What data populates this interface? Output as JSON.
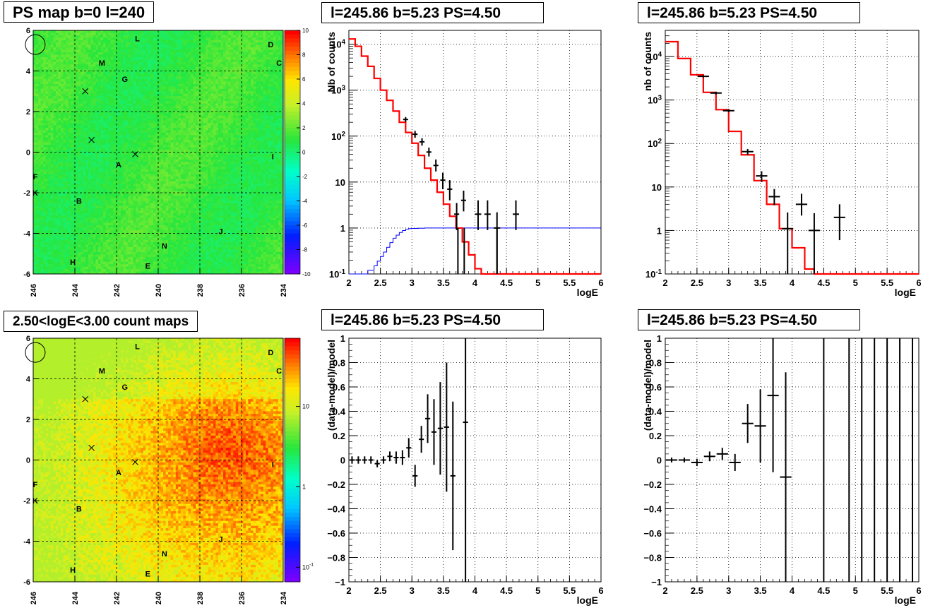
{
  "pads": {
    "map_ps": {
      "title": "PS map b=0 l=240"
    },
    "map_cnt": {
      "title": "2.50<logE<3.00 count maps"
    },
    "spec1": {
      "title": "l=245.86 b=5.23 PS=4.50"
    },
    "spec2": {
      "title": "l=245.86 b=5.23 PS=4.50"
    },
    "res1": {
      "title": "l=245.86 b=5.23 PS=4.50"
    },
    "res2": {
      "title": "l=245.86 b=5.23 PS=4.50"
    }
  },
  "colors": {
    "model": "#ff0000",
    "exposure": "#0000ff",
    "data": "#000000"
  },
  "chart_data": [
    {
      "id": "map_ps",
      "type": "heatmap",
      "title": "PS map b=0 l=240",
      "x_ticks": [
        "246",
        "244",
        "242",
        "240",
        "238",
        "236",
        "234"
      ],
      "y_ticks": [
        "6",
        "4",
        "2",
        "0",
        "-2",
        "-4",
        "-6"
      ],
      "xlim": [
        246,
        234
      ],
      "ylim": [
        -6,
        6
      ],
      "z_ticks": [
        "10",
        "8",
        "6",
        "4",
        "2",
        "0",
        "-2",
        "-4",
        "-6",
        "-8",
        "-10"
      ],
      "zlim": [
        -10,
        10
      ],
      "dominant_value": 0,
      "grid": true,
      "labels": [
        {
          "t": "L",
          "l": 241.0,
          "b": 5.6
        },
        {
          "t": "D",
          "l": 234.6,
          "b": 5.3
        },
        {
          "t": "C",
          "l": 234.2,
          "b": 4.4
        },
        {
          "t": "M",
          "l": 242.7,
          "b": 4.4
        },
        {
          "t": "G",
          "l": 241.6,
          "b": 3.6
        },
        {
          "t": "I",
          "l": 234.5,
          "b": -0.2
        },
        {
          "t": "A",
          "l": 241.9,
          "b": -0.6
        },
        {
          "t": "F",
          "l": 245.9,
          "b": -1.2
        },
        {
          "t": "K",
          "l": 245.9,
          "b": -2.0
        },
        {
          "t": "B",
          "l": 243.8,
          "b": -2.4
        },
        {
          "t": "J",
          "l": 237.0,
          "b": -3.9
        },
        {
          "t": "N",
          "l": 239.7,
          "b": -4.6
        },
        {
          "t": "H",
          "l": 244.1,
          "b": -5.4
        },
        {
          "t": "E",
          "l": 240.5,
          "b": -5.6
        }
      ],
      "crosses": [
        {
          "l": 243.5,
          "b": 3.0
        },
        {
          "l": 243.2,
          "b": 0.6
        },
        {
          "l": 241.1,
          "b": -0.1
        }
      ],
      "circle": {
        "l": 245.9,
        "b": 5.3
      }
    },
    {
      "id": "map_cnt",
      "type": "heatmap",
      "title": "2.50<logE<3.00 count maps",
      "x_ticks": [
        "246",
        "244",
        "242",
        "240",
        "238",
        "236",
        "234"
      ],
      "y_ticks": [
        "6",
        "4",
        "2",
        "0",
        "-2",
        "-4",
        "-6"
      ],
      "xlim": [
        246,
        234
      ],
      "ylim": [
        -6,
        6
      ],
      "z_ticks": [
        "10",
        "1",
        "10^{-1}"
      ],
      "zscale": "log",
      "grid": true,
      "labels": [
        {
          "t": "L",
          "l": 241.0,
          "b": 5.6
        },
        {
          "t": "D",
          "l": 234.6,
          "b": 5.3
        },
        {
          "t": "C",
          "l": 234.2,
          "b": 4.4
        },
        {
          "t": "M",
          "l": 242.7,
          "b": 4.4
        },
        {
          "t": "G",
          "l": 241.6,
          "b": 3.6
        },
        {
          "t": "I",
          "l": 234.5,
          "b": -0.2
        },
        {
          "t": "A",
          "l": 241.9,
          "b": -0.6
        },
        {
          "t": "F",
          "l": 245.9,
          "b": -1.2
        },
        {
          "t": "K",
          "l": 245.9,
          "b": -2.0
        },
        {
          "t": "B",
          "l": 243.8,
          "b": -2.4
        },
        {
          "t": "J",
          "l": 237.0,
          "b": -3.9
        },
        {
          "t": "N",
          "l": 239.7,
          "b": -4.6
        },
        {
          "t": "H",
          "l": 244.1,
          "b": -5.4
        },
        {
          "t": "E",
          "l": 240.5,
          "b": -5.6
        }
      ],
      "crosses": [
        {
          "l": 243.5,
          "b": 3.0
        },
        {
          "l": 243.2,
          "b": 0.6
        },
        {
          "l": 241.1,
          "b": -0.1
        }
      ],
      "circle": {
        "l": 245.9,
        "b": 5.3
      }
    },
    {
      "id": "spec1",
      "type": "line",
      "title": "l=245.86 b=5.23 PS=4.50",
      "xlabel": "logE",
      "ylabel": "Nb of counts",
      "xlim": [
        2,
        6
      ],
      "ylim": [
        0.1,
        20000
      ],
      "yscale": "log",
      "x_ticks": [
        "2",
        "2.5",
        "3",
        "3.5",
        "4",
        "4.5",
        "5",
        "5.5",
        "6"
      ],
      "y_ticks": [
        "10^{-1}",
        "1",
        "10",
        "10^{2}",
        "10^{3}",
        "10^{4}"
      ],
      "grid": true,
      "model_bins": {
        "edges": [
          2,
          2.1,
          2.2,
          2.3,
          2.4,
          2.5,
          2.6,
          2.7,
          2.8,
          2.9,
          3.0,
          3.1,
          3.2,
          3.3,
          3.4,
          3.5,
          3.6,
          3.7,
          3.8,
          3.9,
          4.0,
          4.1,
          4.2,
          6.0
        ],
        "values": [
          13000,
          9000,
          5500,
          3300,
          1800,
          1000,
          600,
          350,
          200,
          120,
          70,
          38,
          20,
          11,
          6,
          3.3,
          1.8,
          1.0,
          0.5,
          0.26,
          0.13,
          0.1,
          0.1
        ]
      },
      "exposure_bins": {
        "edges": [
          2,
          2.3,
          2.4,
          2.45,
          2.5,
          2.55,
          2.6,
          2.65,
          2.7,
          2.75,
          2.8,
          2.85,
          2.9,
          2.95,
          3.0,
          3.1,
          3.2,
          6.0
        ],
        "values": [
          0.1,
          0.12,
          0.15,
          0.19,
          0.24,
          0.3,
          0.38,
          0.48,
          0.6,
          0.7,
          0.8,
          0.88,
          0.94,
          0.97,
          0.98,
          0.99,
          1.0
        ]
      },
      "data_points": [
        {
          "x": 2.9,
          "y": 230,
          "ylo": 200,
          "yhi": 260,
          "xerr": 0.04
        },
        {
          "x": 3.05,
          "y": 110,
          "ylo": 92,
          "yhi": 130,
          "xerr": 0.04
        },
        {
          "x": 3.16,
          "y": 75,
          "ylo": 62,
          "yhi": 90,
          "xerr": 0.04
        },
        {
          "x": 3.27,
          "y": 45,
          "ylo": 36,
          "yhi": 56,
          "xerr": 0.04
        },
        {
          "x": 3.38,
          "y": 23,
          "ylo": 17,
          "yhi": 31,
          "xerr": 0.04
        },
        {
          "x": 3.49,
          "y": 11,
          "ylo": 7,
          "yhi": 16,
          "xerr": 0.04
        },
        {
          "x": 3.6,
          "y": 7,
          "ylo": 4,
          "yhi": 11,
          "xerr": 0.04
        },
        {
          "x": 3.71,
          "y": 2.0,
          "ylo": 0.9,
          "yhi": 3.5,
          "xerr": 0.04
        },
        {
          "x": 3.82,
          "y": 4,
          "ylo": 2.3,
          "yhi": 6.5,
          "xerr": 0.04
        },
        {
          "x": 4.05,
          "y": 2.0,
          "ylo": 0.9,
          "yhi": 4,
          "xerr": 0.05
        },
        {
          "x": 4.2,
          "y": 2.0,
          "ylo": 0.9,
          "yhi": 4,
          "xerr": 0.05
        },
        {
          "x": 4.35,
          "y": 1.0,
          "ylo": 0.1,
          "yhi": 2.2,
          "xerr": 0.05
        },
        {
          "x": 4.65,
          "y": 2.0,
          "ylo": 0.9,
          "yhi": 4,
          "xerr": 0.05
        }
      ],
      "vertical_lines": [
        3.73,
        3.83,
        4.35
      ]
    },
    {
      "id": "spec2",
      "type": "line",
      "title": "l=245.86 b=5.23 PS=4.50",
      "xlabel": "logE",
      "ylabel": "nb of counts",
      "xlim": [
        2,
        6
      ],
      "ylim": [
        0.1,
        40000
      ],
      "yscale": "log",
      "x_ticks": [
        "2",
        "2.5",
        "3",
        "3.5",
        "4",
        "4.5",
        "5",
        "5.5",
        "6"
      ],
      "y_ticks": [
        "10^{-1}",
        "1",
        "10",
        "10^{2}",
        "10^{3}",
        "10^{4}"
      ],
      "grid": true,
      "model_bins": {
        "edges": [
          2,
          2.2,
          2.4,
          2.6,
          2.8,
          3.0,
          3.2,
          3.4,
          3.6,
          3.8,
          4.0,
          4.2,
          4.35,
          6.0
        ],
        "values": [
          22000,
          9000,
          3800,
          1500,
          600,
          190,
          55,
          14,
          4,
          1.1,
          0.4,
          0.13,
          0.1
        ]
      },
      "data_points": [
        {
          "x": 2.6,
          "y": 3500,
          "ylo": 3300,
          "yhi": 3700,
          "xerr": 0.09
        },
        {
          "x": 2.8,
          "y": 1450,
          "ylo": 1350,
          "yhi": 1550,
          "xerr": 0.09
        },
        {
          "x": 3.0,
          "y": 570,
          "ylo": 530,
          "yhi": 610,
          "xerr": 0.09
        },
        {
          "x": 3.3,
          "y": 65,
          "ylo": 55,
          "yhi": 75,
          "xerr": 0.09
        },
        {
          "x": 3.52,
          "y": 18,
          "ylo": 13,
          "yhi": 23,
          "xerr": 0.09
        },
        {
          "x": 3.72,
          "y": 6,
          "ylo": 3.8,
          "yhi": 9,
          "xerr": 0.09
        },
        {
          "x": 3.93,
          "y": 1.1,
          "ylo": 0.1,
          "yhi": 2.6,
          "xerr": 0.09
        },
        {
          "x": 4.15,
          "y": 4,
          "ylo": 2.2,
          "yhi": 7,
          "xerr": 0.09
        },
        {
          "x": 4.35,
          "y": 1.0,
          "ylo": 0.1,
          "yhi": 2.5,
          "xerr": 0.09
        },
        {
          "x": 4.75,
          "y": 2.0,
          "ylo": 0.6,
          "yhi": 4,
          "xerr": 0.09
        }
      ]
    },
    {
      "id": "res1",
      "type": "scatter",
      "title": "l=245.86 b=5.23 PS=4.50",
      "xlabel": "logE",
      "ylabel": "(data-model)/model",
      "xlim": [
        2,
        6
      ],
      "ylim": [
        -1,
        1
      ],
      "x_ticks": [
        "2",
        "2.5",
        "3",
        "3.5",
        "4",
        "4.5",
        "5",
        "5.5",
        "6"
      ],
      "y_ticks": [
        "1",
        "0.8",
        "0.6",
        "0.4",
        "0.2",
        "0",
        "-0.2",
        "-0.4",
        "-0.6",
        "-0.8",
        "-1"
      ],
      "grid": true,
      "data_points": [
        {
          "x": 2.05,
          "y": 0.0,
          "yerr": 0.03,
          "xerr": 0.04
        },
        {
          "x": 2.15,
          "y": 0.0,
          "yerr": 0.03,
          "xerr": 0.04
        },
        {
          "x": 2.25,
          "y": 0.0,
          "yerr": 0.03,
          "xerr": 0.04
        },
        {
          "x": 2.35,
          "y": 0.0,
          "yerr": 0.03,
          "xerr": 0.04
        },
        {
          "x": 2.45,
          "y": -0.03,
          "yerr": 0.03,
          "xerr": 0.04
        },
        {
          "x": 2.55,
          "y": 0.0,
          "yerr": 0.03,
          "xerr": 0.04
        },
        {
          "x": 2.65,
          "y": 0.03,
          "yerr": 0.04,
          "xerr": 0.04
        },
        {
          "x": 2.75,
          "y": 0.02,
          "yerr": 0.05,
          "xerr": 0.04
        },
        {
          "x": 2.85,
          "y": 0.02,
          "yerr": 0.06,
          "xerr": 0.04
        },
        {
          "x": 2.95,
          "y": 0.1,
          "yerr": 0.08,
          "xerr": 0.04
        },
        {
          "x": 3.05,
          "y": -0.13,
          "yerr": 0.09,
          "xerr": 0.04
        },
        {
          "x": 3.15,
          "y": 0.17,
          "yerr": 0.11,
          "xerr": 0.04
        },
        {
          "x": 3.25,
          "y": 0.34,
          "yerr": 0.2,
          "xerr": 0.04
        },
        {
          "x": 3.35,
          "y": 0.23,
          "yerr": 0.27,
          "xerr": 0.04
        },
        {
          "x": 3.45,
          "y": 0.26,
          "yerr": 0.38,
          "xerr": 0.04
        },
        {
          "x": 3.55,
          "y": 0.27,
          "yerr": 0.53,
          "xerr": 0.04
        },
        {
          "x": 3.65,
          "y": -0.13,
          "yerr": 0.61,
          "xerr": 0.04
        },
        {
          "x": 3.85,
          "y": 0.31,
          "yerr": 1.5,
          "xerr": 0.04
        }
      ]
    },
    {
      "id": "res2",
      "type": "scatter",
      "title": "l=245.86 b=5.23 PS=4.50",
      "xlabel": "logE",
      "ylabel": "(data-model)/model",
      "xlim": [
        2,
        6
      ],
      "ylim": [
        -1,
        1
      ],
      "x_ticks": [
        "2",
        "2.5",
        "3",
        "3.5",
        "4",
        "4.5",
        "5",
        "5.5",
        "6"
      ],
      "y_ticks": [
        "1",
        "0.8",
        "0.6",
        "0.4",
        "0.2",
        "0",
        "-0.2",
        "-0.4",
        "-0.6",
        "-0.8",
        "-1"
      ],
      "grid": true,
      "data_points": [
        {
          "x": 2.1,
          "y": 0.0,
          "yerr": 0.02,
          "xerr": 0.09
        },
        {
          "x": 2.3,
          "y": 0.0,
          "yerr": 0.02,
          "xerr": 0.09
        },
        {
          "x": 2.5,
          "y": -0.02,
          "yerr": 0.03,
          "xerr": 0.09
        },
        {
          "x": 2.7,
          "y": 0.03,
          "yerr": 0.04,
          "xerr": 0.09
        },
        {
          "x": 2.9,
          "y": 0.05,
          "yerr": 0.05,
          "xerr": 0.09
        },
        {
          "x": 3.1,
          "y": -0.02,
          "yerr": 0.07,
          "xerr": 0.09
        },
        {
          "x": 3.3,
          "y": 0.3,
          "yerr": 0.16,
          "xerr": 0.09
        },
        {
          "x": 3.5,
          "y": 0.28,
          "yerr": 0.3,
          "xerr": 0.09
        },
        {
          "x": 3.7,
          "y": 0.53,
          "yerr": 0.63,
          "xerr": 0.09
        },
        {
          "x": 3.9,
          "y": -0.14,
          "yerr": 0.86,
          "xerr": 0.09
        }
      ],
      "vertical_lines": [
        4.5,
        4.9,
        5.1,
        5.3,
        5.5,
        5.7,
        5.9
      ]
    }
  ]
}
